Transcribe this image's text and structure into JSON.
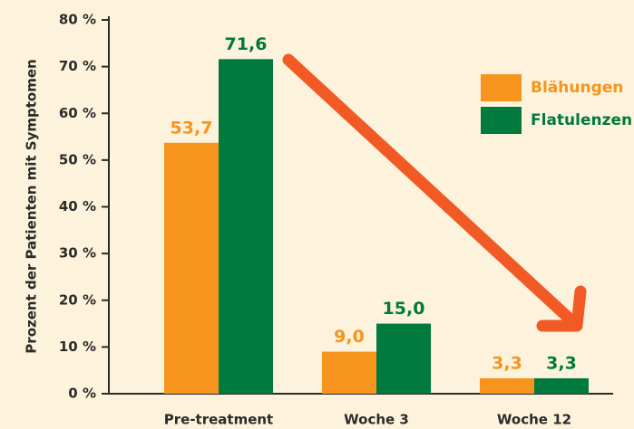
{
  "chart_data": {
    "type": "bar",
    "y_label": "Prozent der Patienten mit Symptomen",
    "categories": [
      "Pre-treatment",
      "Woche 3",
      "Woche 12"
    ],
    "series": [
      {
        "name": "Blähungen",
        "color": "#f7941d",
        "values": [
          53.7,
          9.0,
          3.3
        ],
        "value_labels": [
          "53,7",
          "9,0",
          "3,3"
        ]
      },
      {
        "name": "Flatulenzen",
        "color": "#007a3d",
        "values": [
          71.6,
          15.0,
          3.3
        ],
        "value_labels": [
          "71,6",
          "15,0",
          "3,3"
        ]
      }
    ],
    "ylim": [
      0,
      80
    ],
    "yticks": [
      {
        "value": 0,
        "label": "0 %"
      },
      {
        "value": 10,
        "label": "10 %"
      },
      {
        "value": 20,
        "label": "20 %"
      },
      {
        "value": 30,
        "label": "30 %"
      },
      {
        "value": 40,
        "label": "40 %"
      },
      {
        "value": 50,
        "label": "50 %"
      },
      {
        "value": 60,
        "label": "60 %"
      },
      {
        "value": 70,
        "label": "70 %"
      },
      {
        "value": 80,
        "label": "80 %"
      }
    ],
    "legend": "upper right"
  }
}
